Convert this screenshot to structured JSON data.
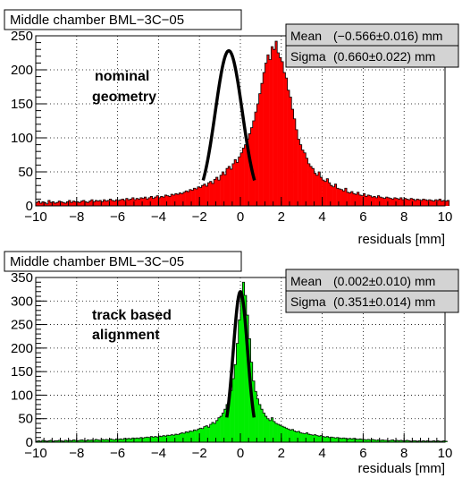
{
  "chart_data": [
    {
      "type": "histogram",
      "title": "Middle chamber BML−3C−05",
      "xlabel": "residuals [mm]",
      "ylabel": "",
      "xlim": [
        -10,
        10
      ],
      "ylim": [
        0,
        250
      ],
      "xticks": [
        "−10",
        "−8",
        "−6",
        "−4",
        "−2",
        "0",
        "2",
        "4",
        "6",
        "8",
        "10"
      ],
      "yticks": [
        "0",
        "50",
        "100",
        "150",
        "200",
        "250"
      ],
      "grid": true,
      "fill_color": "#ff0000",
      "fit_color": "#000000",
      "annotation": [
        "nominal",
        "geometry"
      ],
      "stats": [
        {
          "label": "Mean",
          "value": "(−0.566±0.016) mm"
        },
        {
          "label": "Sigma",
          "value": "(0.660±0.022) mm"
        }
      ],
      "fit": {
        "mean": -0.566,
        "sigma": 0.66,
        "amplitude": 228
      },
      "bins": {
        "x_start": -10,
        "bin_width": 0.1,
        "values": [
          5,
          7,
          4,
          6,
          5,
          3,
          8,
          5,
          6,
          4,
          5,
          7,
          6,
          5,
          4,
          6,
          8,
          5,
          7,
          6,
          6,
          5,
          7,
          8,
          6,
          5,
          7,
          9,
          6,
          8,
          7,
          8,
          6,
          9,
          7,
          8,
          10,
          8,
          7,
          9,
          8,
          9,
          10,
          8,
          11,
          9,
          10,
          12,
          9,
          11,
          10,
          12,
          11,
          13,
          10,
          12,
          14,
          11,
          13,
          15,
          12,
          14,
          13,
          16,
          15,
          14,
          17,
          16,
          18,
          17,
          19,
          18,
          20,
          22,
          21,
          24,
          23,
          26,
          25,
          28,
          27,
          30,
          32,
          29,
          34,
          36,
          33,
          39,
          42,
          38,
          45,
          50,
          46,
          55,
          58,
          54,
          62,
          68,
          64,
          72,
          78,
          85,
          90,
          98,
          106,
          115,
          125,
          138,
          150,
          165,
          180,
          196,
          210,
          222,
          215,
          234,
          230,
          242,
          225,
          218,
          212,
          196,
          188,
          170,
          160,
          142,
          128,
          112,
          98,
          90,
          82,
          78,
          70,
          62,
          58,
          55,
          48,
          45,
          50,
          42,
          38,
          36,
          40,
          34,
          30,
          28,
          32,
          26,
          25,
          24,
          22,
          26,
          20,
          19,
          21,
          18,
          17,
          20,
          16,
          15,
          18,
          14,
          16,
          15,
          13,
          14,
          12,
          15,
          13,
          12,
          11,
          13,
          12,
          11,
          10,
          12,
          11,
          10,
          12,
          9,
          11,
          10,
          9,
          11,
          10,
          8,
          10,
          9,
          8,
          10,
          9,
          8,
          9,
          8,
          7,
          9,
          8,
          10,
          7,
          8,
          7,
          8
        ]
      }
    },
    {
      "type": "histogram",
      "title": "Middle chamber BML−3C−05",
      "xlabel": "residuals [mm]",
      "ylabel": "",
      "xlim": [
        -10,
        10
      ],
      "ylim": [
        0,
        350
      ],
      "xticks": [
        "−10",
        "−8",
        "−6",
        "−4",
        "−2",
        "0",
        "2",
        "4",
        "6",
        "8",
        "10"
      ],
      "yticks": [
        "0",
        "50",
        "100",
        "150",
        "200",
        "250",
        "300",
        "350"
      ],
      "grid": true,
      "fill_color": "#00ee00",
      "fit_color": "#000000",
      "annotation": [
        "track based",
        "alignment"
      ],
      "stats": [
        {
          "label": "Mean",
          "value": "(0.002±0.010) mm"
        },
        {
          "label": "Sigma",
          "value": "(0.351±0.014) mm"
        }
      ],
      "fit": {
        "mean": 0.002,
        "sigma": 0.351,
        "amplitude": 320
      },
      "bins": {
        "x_start": -10,
        "bin_width": 0.1,
        "values": [
          2,
          3,
          2,
          4,
          3,
          2,
          3,
          4,
          2,
          3,
          3,
          4,
          3,
          2,
          4,
          3,
          4,
          3,
          5,
          4,
          3,
          4,
          5,
          4,
          3,
          5,
          4,
          5,
          4,
          6,
          5,
          4,
          6,
          5,
          6,
          5,
          7,
          6,
          5,
          7,
          6,
          7,
          6,
          8,
          7,
          8,
          7,
          9,
          8,
          9,
          8,
          10,
          9,
          10,
          11,
          10,
          12,
          11,
          12,
          11,
          13,
          12,
          14,
          13,
          15,
          14,
          16,
          15,
          17,
          16,
          18,
          20,
          19,
          22,
          21,
          24,
          23,
          26,
          25,
          28,
          30,
          29,
          33,
          35,
          32,
          38,
          42,
          40,
          46,
          52,
          55,
          62,
          70,
          80,
          95,
          110,
          135,
          165,
          210,
          260,
          318,
          340,
          312,
          270,
          220,
          170,
          130,
          108,
          92,
          80,
          70,
          62,
          55,
          50,
          46,
          52,
          44,
          40,
          38,
          36,
          34,
          32,
          30,
          28,
          26,
          27,
          24,
          22,
          23,
          20,
          19,
          18,
          20,
          17,
          16,
          15,
          16,
          14,
          13,
          14,
          12,
          11,
          12,
          10,
          11,
          10,
          9,
          10,
          9,
          8,
          9,
          8,
          7,
          8,
          7,
          8,
          7,
          6,
          7,
          6,
          6,
          5,
          6,
          5,
          6,
          5,
          4,
          5,
          4,
          5,
          4,
          4,
          3,
          4,
          5,
          3,
          4,
          3,
          4,
          3,
          3,
          4,
          3,
          2,
          3,
          3,
          2,
          3,
          2,
          3,
          2,
          3,
          2,
          2,
          3,
          2,
          3,
          2,
          2,
          3,
          2
        ]
      }
    }
  ]
}
